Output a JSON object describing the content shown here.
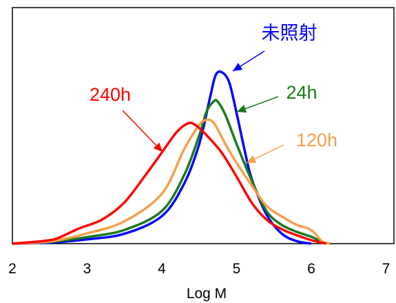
{
  "chart_data": {
    "type": "line",
    "xlabel": "Log M",
    "ylabel": "",
    "xlim": [
      2,
      7
    ],
    "ylim": [
      0,
      1
    ],
    "x_ticks": [
      "2",
      "3",
      "4",
      "5",
      "6",
      "7"
    ],
    "grid": false,
    "legend": "none",
    "series": [
      {
        "name": "未照射",
        "color": "#0000ff",
        "points": [
          [
            2.0,
            0.0
          ],
          [
            2.5,
            0.006
          ],
          [
            3.0,
            0.025
          ],
          [
            3.5,
            0.058
          ],
          [
            4.0,
            0.16
          ],
          [
            4.3,
            0.35
          ],
          [
            4.5,
            0.58
          ],
          [
            4.65,
            0.86
          ],
          [
            4.72,
            0.98
          ],
          [
            4.8,
            0.998
          ],
          [
            4.9,
            0.94
          ],
          [
            5.0,
            0.76
          ],
          [
            5.1,
            0.56
          ],
          [
            5.2,
            0.38
          ],
          [
            5.4,
            0.17
          ],
          [
            5.6,
            0.06
          ],
          [
            5.8,
            0.015
          ],
          [
            6.0,
            0.0
          ]
        ]
      },
      {
        "name": "24h",
        "color": "#1a7a1a",
        "points": [
          [
            2.0,
            0.0
          ],
          [
            2.5,
            0.01
          ],
          [
            3.0,
            0.038
          ],
          [
            3.5,
            0.08
          ],
          [
            4.0,
            0.19
          ],
          [
            4.3,
            0.4
          ],
          [
            4.5,
            0.63
          ],
          [
            4.6,
            0.77
          ],
          [
            4.7,
            0.83
          ],
          [
            4.75,
            0.825
          ],
          [
            4.85,
            0.75
          ],
          [
            5.0,
            0.58
          ],
          [
            5.2,
            0.37
          ],
          [
            5.4,
            0.19
          ],
          [
            5.6,
            0.11
          ],
          [
            5.8,
            0.07
          ],
          [
            6.0,
            0.04
          ],
          [
            6.15,
            0.01
          ],
          [
            6.25,
            0.0
          ]
        ]
      },
      {
        "name": "120h",
        "color": "#f5a04a",
        "points": [
          [
            2.0,
            0.0
          ],
          [
            2.5,
            0.012
          ],
          [
            3.0,
            0.06
          ],
          [
            3.5,
            0.13
          ],
          [
            4.0,
            0.29
          ],
          [
            4.3,
            0.55
          ],
          [
            4.5,
            0.69
          ],
          [
            4.6,
            0.72
          ],
          [
            4.7,
            0.7
          ],
          [
            4.85,
            0.58
          ],
          [
            5.0,
            0.47
          ],
          [
            5.2,
            0.34
          ],
          [
            5.4,
            0.22
          ],
          [
            5.6,
            0.16
          ],
          [
            5.8,
            0.11
          ],
          [
            5.95,
            0.09
          ],
          [
            6.05,
            0.06
          ],
          [
            6.15,
            0.01
          ],
          [
            6.25,
            0.0
          ]
        ]
      },
      {
        "name": "240h",
        "color": "#ff0000",
        "points": [
          [
            2.0,
            0.0
          ],
          [
            2.5,
            0.02
          ],
          [
            2.7,
            0.05
          ],
          [
            2.9,
            0.09
          ],
          [
            3.2,
            0.14
          ],
          [
            3.5,
            0.24
          ],
          [
            3.8,
            0.41
          ],
          [
            4.0,
            0.53
          ],
          [
            4.2,
            0.65
          ],
          [
            4.35,
            0.7
          ],
          [
            4.45,
            0.69
          ],
          [
            4.6,
            0.63
          ],
          [
            4.8,
            0.53
          ],
          [
            5.0,
            0.39
          ],
          [
            5.2,
            0.24
          ],
          [
            5.4,
            0.14
          ],
          [
            5.6,
            0.085
          ],
          [
            5.8,
            0.05
          ],
          [
            6.0,
            0.02
          ],
          [
            6.2,
            0.0
          ]
        ]
      }
    ],
    "annotations": [
      {
        "text": "未照射",
        "color": "#0000ff"
      },
      {
        "text": "24h",
        "color": "#1a7a1a"
      },
      {
        "text": "120h",
        "color": "#f5a04a"
      },
      {
        "text": "240h",
        "color": "#ff0000"
      }
    ]
  }
}
